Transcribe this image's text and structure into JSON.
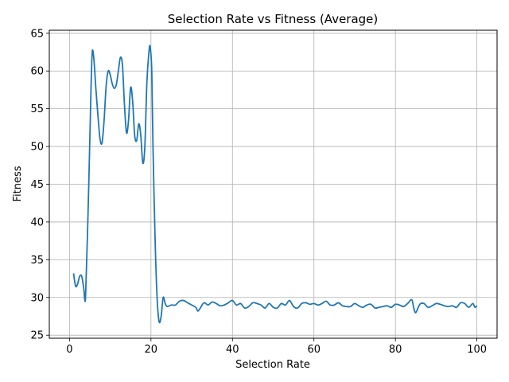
{
  "chart_data": {
    "type": "line",
    "title": "Selection Rate vs Fitness (Average)",
    "xlabel": "Selection Rate",
    "ylabel": "Fitness",
    "xlim": [
      -4.95,
      104.95
    ],
    "ylim": [
      24.6,
      65.4
    ],
    "xticks": [
      0,
      20,
      40,
      60,
      80,
      100
    ],
    "yticks": [
      25,
      30,
      35,
      40,
      45,
      50,
      55,
      60,
      65
    ],
    "grid": true,
    "series": [
      {
        "color": "#1f77b4",
        "points": [
          [
            1,
            33.2
          ],
          [
            1.5,
            31.5
          ],
          [
            2,
            31.8
          ],
          [
            2.5,
            32.8
          ],
          [
            3,
            32.8
          ],
          [
            3.5,
            31.2
          ],
          [
            3.8,
            29.5
          ],
          [
            4,
            31.0
          ],
          [
            4.5,
            40.0
          ],
          [
            5,
            51.0
          ],
          [
            5.3,
            58.0
          ],
          [
            5.6,
            62.6
          ],
          [
            6,
            61.5
          ],
          [
            6.5,
            57.5
          ],
          [
            7,
            54.0
          ],
          [
            7.5,
            51.0
          ],
          [
            8,
            50.5
          ],
          [
            8.5,
            53.5
          ],
          [
            9,
            58.0
          ],
          [
            9.5,
            60.0
          ],
          [
            10,
            59.5
          ],
          [
            10.5,
            58.3
          ],
          [
            11,
            57.7
          ],
          [
            11.5,
            58.2
          ],
          [
            12,
            60.0
          ],
          [
            12.5,
            61.8
          ],
          [
            13,
            60.8
          ],
          [
            13.5,
            55.5
          ],
          [
            14,
            51.8
          ],
          [
            14.5,
            53.5
          ],
          [
            15,
            57.8
          ],
          [
            15.5,
            56.0
          ],
          [
            16,
            51.5
          ],
          [
            16.5,
            50.8
          ],
          [
            17,
            53.0
          ],
          [
            17.5,
            51.5
          ],
          [
            18,
            47.8
          ],
          [
            18.5,
            50.0
          ],
          [
            19,
            58.5
          ],
          [
            19.5,
            62.5
          ],
          [
            19.8,
            63.2
          ],
          [
            20.2,
            60.0
          ],
          [
            20.5,
            50.0
          ],
          [
            21,
            38.0
          ],
          [
            21.5,
            30.0
          ],
          [
            22,
            26.8
          ],
          [
            22.5,
            27.5
          ],
          [
            23,
            30.0
          ],
          [
            23.5,
            29.2
          ],
          [
            24,
            28.8
          ],
          [
            25,
            29.0
          ],
          [
            26,
            29.0
          ],
          [
            27,
            29.5
          ],
          [
            28,
            29.6
          ],
          [
            29,
            29.3
          ],
          [
            30,
            29.0
          ],
          [
            31,
            28.7
          ],
          [
            31.5,
            28.2
          ],
          [
            32,
            28.5
          ],
          [
            33,
            29.3
          ],
          [
            34,
            29.0
          ],
          [
            35,
            29.4
          ],
          [
            36,
            29.2
          ],
          [
            37,
            28.9
          ],
          [
            38,
            29.0
          ],
          [
            39,
            29.3
          ],
          [
            40,
            29.6
          ],
          [
            41,
            29.0
          ],
          [
            42,
            29.2
          ],
          [
            43,
            28.6
          ],
          [
            44,
            28.8
          ],
          [
            45,
            29.3
          ],
          [
            46,
            29.2
          ],
          [
            47,
            29.0
          ],
          [
            48,
            28.6
          ],
          [
            49,
            29.2
          ],
          [
            50,
            28.7
          ],
          [
            51,
            28.6
          ],
          [
            52,
            29.2
          ],
          [
            53,
            29.0
          ],
          [
            54,
            29.6
          ],
          [
            55,
            28.8
          ],
          [
            56,
            28.6
          ],
          [
            57,
            29.2
          ],
          [
            58,
            29.3
          ],
          [
            59,
            29.1
          ],
          [
            60,
            29.2
          ],
          [
            61,
            29.0
          ],
          [
            62,
            29.2
          ],
          [
            63,
            29.5
          ],
          [
            64,
            29.0
          ],
          [
            65,
            29.0
          ],
          [
            66,
            29.3
          ],
          [
            67,
            28.9
          ],
          [
            68,
            28.8
          ],
          [
            69,
            28.8
          ],
          [
            70,
            29.2
          ],
          [
            71,
            28.9
          ],
          [
            72,
            28.7
          ],
          [
            73,
            29.0
          ],
          [
            74,
            29.1
          ],
          [
            75,
            28.6
          ],
          [
            76,
            28.7
          ],
          [
            77,
            28.8
          ],
          [
            78,
            28.9
          ],
          [
            79,
            28.7
          ],
          [
            80,
            29.1
          ],
          [
            81,
            29.0
          ],
          [
            82,
            28.8
          ],
          [
            83,
            29.2
          ],
          [
            84,
            29.7
          ],
          [
            84.5,
            28.6
          ],
          [
            85,
            28.0
          ],
          [
            86,
            29.1
          ],
          [
            87,
            29.2
          ],
          [
            88,
            28.7
          ],
          [
            89,
            28.9
          ],
          [
            90,
            29.2
          ],
          [
            91,
            29.1
          ],
          [
            92,
            28.9
          ],
          [
            93,
            28.8
          ],
          [
            94,
            28.9
          ],
          [
            95,
            28.7
          ],
          [
            96,
            29.3
          ],
          [
            97,
            29.2
          ],
          [
            98,
            28.7
          ],
          [
            99,
            29.2
          ],
          [
            99.5,
            28.7
          ],
          [
            100,
            28.9
          ]
        ]
      }
    ]
  }
}
